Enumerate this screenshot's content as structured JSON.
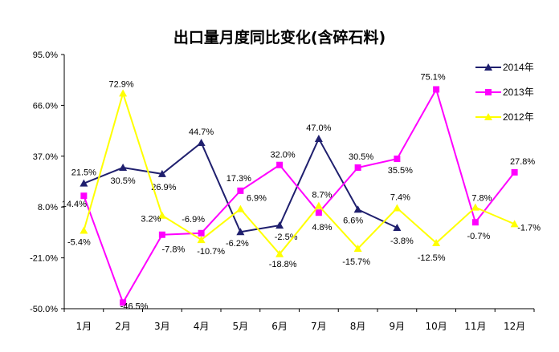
{
  "chart_data": {
    "type": "line",
    "title": "出口量月度同比变化(含碎石料)",
    "categories": [
      "1月",
      "2月",
      "3月",
      "4月",
      "5月",
      "6月",
      "7月",
      "8月",
      "9月",
      "10月",
      "11月",
      "12月"
    ],
    "ylim": [
      -50.0,
      95.0
    ],
    "yticks": [
      95.0,
      66.0,
      37.0,
      8.0,
      -21.0,
      -50.0
    ],
    "ytick_labels": [
      "95.0%",
      "66.0%",
      "37.0%",
      "8.0%",
      "-21.0%",
      "-50.0%"
    ],
    "grid": false,
    "legend_position": "top-right",
    "series": [
      {
        "name": "2014年",
        "color": "#1f1f6e",
        "marker": "triangle",
        "values": [
          21.5,
          30.5,
          26.9,
          44.7,
          -6.2,
          -2.5,
          47.0,
          6.6,
          -3.8,
          null,
          null,
          null
        ],
        "labels": [
          "21.5%",
          "30.5%",
          "26.9%",
          "44.7%",
          "-6.2%",
          "-2.5%",
          "47.0%",
          "6.6%",
          "-3.8%",
          "",
          "",
          ""
        ]
      },
      {
        "name": "2013年",
        "color": "#ff00ff",
        "marker": "square",
        "values": [
          14.4,
          -46.5,
          -7.8,
          -6.9,
          17.3,
          32.0,
          4.8,
          30.5,
          35.5,
          75.1,
          -0.7,
          27.8
        ],
        "labels": [
          "14.4%",
          "-46.5%",
          "-7.8%",
          "-6.9%",
          "17.3%",
          "32.0%",
          "4.8%",
          "30.5%",
          "35.5%",
          "75.1%",
          "-0.7%",
          "27.8%"
        ]
      },
      {
        "name": "2012年",
        "color": "#ffff00",
        "marker": "triangle",
        "values": [
          -5.4,
          72.9,
          3.2,
          -10.7,
          6.9,
          -18.8,
          8.7,
          -15.7,
          7.4,
          -12.5,
          7.8,
          -1.7
        ],
        "labels": [
          "-5.4%",
          "72.9%",
          "3.2%",
          "-10.7%",
          "6.9%",
          "-18.8%",
          "8.7%",
          "-15.7%",
          "7.4%",
          "-12.5%",
          "7.8%",
          "-1.7%"
        ]
      }
    ]
  }
}
